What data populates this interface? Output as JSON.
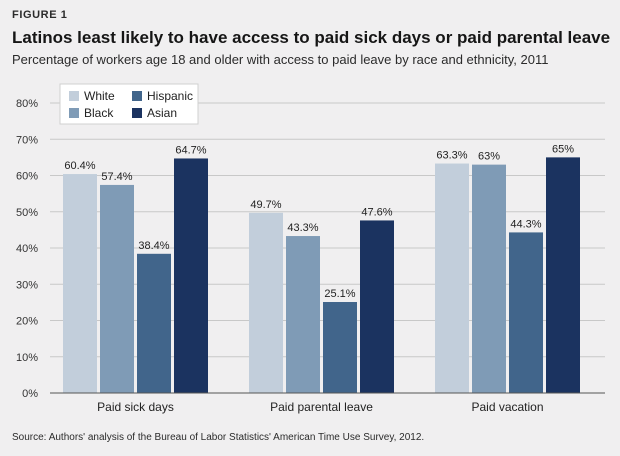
{
  "figure_label": "FIGURE 1",
  "source": "Source: Authors' analysis of the Bureau of Labor Statistics' American Time Use Survey, 2012.",
  "colors": {
    "background": "#f0eff0",
    "grid": "#c8c8c8",
    "axis": "#555555",
    "series": [
      "#c2cedb",
      "#7f9bb6",
      "#41658b",
      "#1b3360"
    ]
  },
  "chart_data": {
    "type": "bar",
    "title": "Latinos least likely to have access to paid sick days or paid parental leave",
    "subtitle": "Percentage of workers age 18 and older with access to paid leave by race and ethnicity, 2011",
    "xlabel": "",
    "ylabel": "",
    "ylim": [
      0,
      80
    ],
    "yticks": [
      0,
      10,
      20,
      30,
      40,
      50,
      60,
      70,
      80
    ],
    "ytick_labels": [
      "0%",
      "10%",
      "20%",
      "30%",
      "40%",
      "50%",
      "60%",
      "70%",
      "80%"
    ],
    "grid": true,
    "legend_position": "top-left",
    "categories": [
      "Paid sick days",
      "Paid parental leave",
      "Paid vacation"
    ],
    "series": [
      {
        "name": "White",
        "values": [
          60.4,
          49.7,
          63.3
        ],
        "labels": [
          "60.4%",
          "49.7%",
          "63.3%"
        ]
      },
      {
        "name": "Black",
        "values": [
          57.4,
          43.3,
          63
        ],
        "labels": [
          "57.4%",
          "43.3%",
          "63%"
        ]
      },
      {
        "name": "Hispanic",
        "values": [
          38.4,
          25.1,
          44.3
        ],
        "labels": [
          "38.4%",
          "25.1%",
          "44.3%"
        ]
      },
      {
        "name": "Asian",
        "values": [
          64.7,
          47.6,
          65
        ],
        "labels": [
          "64.7%",
          "47.6%",
          "65%"
        ]
      }
    ]
  }
}
